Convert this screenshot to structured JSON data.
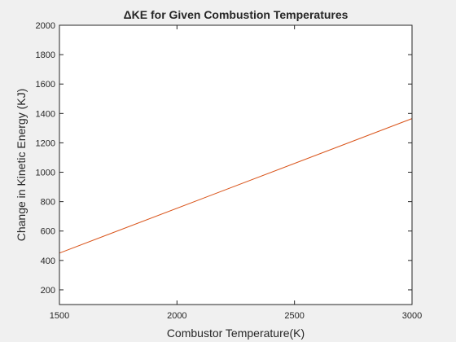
{
  "chart_data": {
    "type": "line",
    "title": "ΔKE for Given Combustion Temperatures",
    "xlabel": "Combustor Temperature(K)",
    "ylabel": "Change in Kinetic Energy (KJ)",
    "xlim": [
      1500,
      3000
    ],
    "ylim": [
      100,
      2000
    ],
    "xticks": [
      1500,
      2000,
      2500,
      3000
    ],
    "yticks": [
      200,
      400,
      600,
      800,
      1000,
      1200,
      1400,
      1600,
      1800,
      2000
    ],
    "grid": false,
    "legend": "none",
    "series": [
      {
        "color": "#d95319",
        "x": [
          1500,
          3000
        ],
        "y": [
          450,
          1365
        ]
      }
    ]
  }
}
